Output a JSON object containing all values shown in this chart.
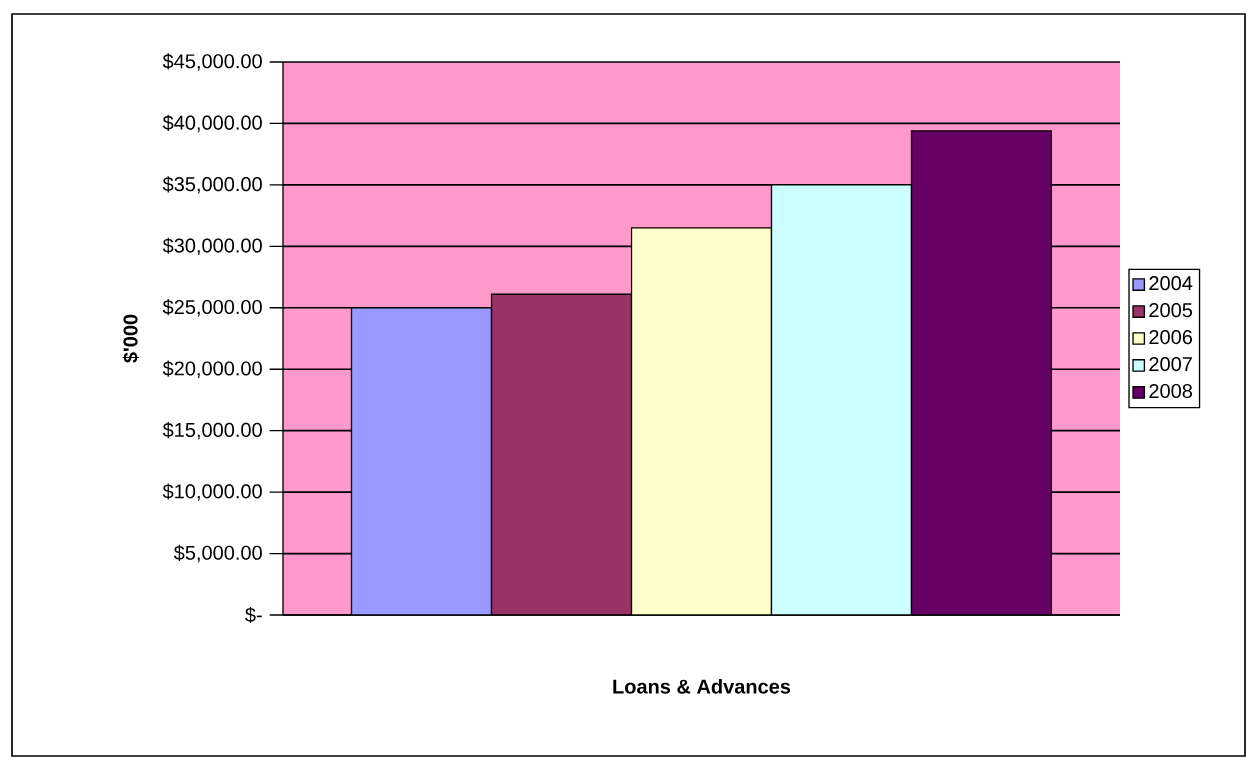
{
  "chart_data": {
    "type": "bar",
    "xlabel": "Loans & Advances",
    "ylabel": "$'000",
    "categories": [
      null
    ],
    "series": [
      {
        "name": "2004",
        "color": "#9999ff",
        "values": [
          25000
        ]
      },
      {
        "name": "2005",
        "color": "#993366",
        "values": [
          26100
        ]
      },
      {
        "name": "2006",
        "color": "#ffffcc",
        "values": [
          31500
        ]
      },
      {
        "name": "2007",
        "color": "#ccffff",
        "values": [
          35000
        ]
      },
      {
        "name": "2008",
        "color": "#660066",
        "values": [
          39400
        ]
      }
    ],
    "ylim": [
      0,
      45000
    ],
    "yticks": [
      {
        "value": 0,
        "label": "$-"
      },
      {
        "value": 5000,
        "label": "$5,000.00"
      },
      {
        "value": 10000,
        "label": "$10,000.00"
      },
      {
        "value": 15000,
        "label": "$15,000.00"
      },
      {
        "value": 20000,
        "label": "$20,000.00"
      },
      {
        "value": 25000,
        "label": "$25,000.00"
      },
      {
        "value": 30000,
        "label": "$30,000.00"
      },
      {
        "value": 35000,
        "label": "$35,000.00"
      },
      {
        "value": 40000,
        "label": "$40,000.00"
      },
      {
        "value": 45000,
        "label": "$45,000.00"
      }
    ],
    "grid": "y",
    "legend": "right"
  }
}
